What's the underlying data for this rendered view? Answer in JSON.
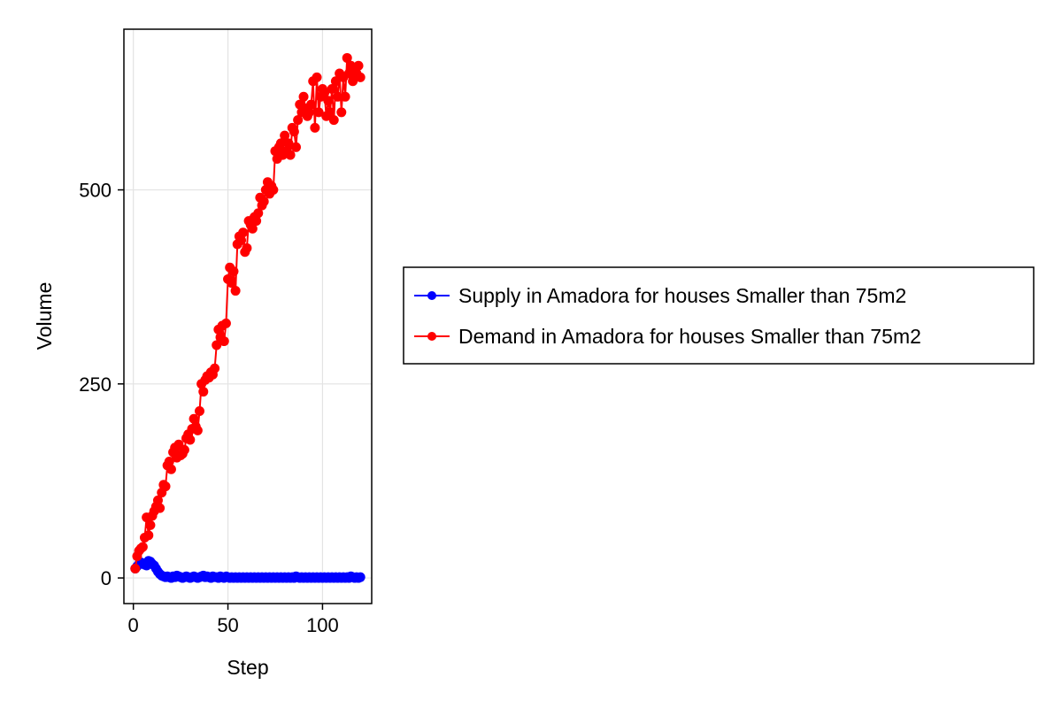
{
  "chart_data": {
    "type": "line",
    "title": "",
    "xlabel": "Step",
    "ylabel": "Volume",
    "xlim": [
      -5,
      126
    ],
    "ylim": [
      -33,
      707
    ],
    "xticks": [
      0,
      50,
      100
    ],
    "yticks": [
      0,
      250,
      500
    ],
    "xtick_labels": [
      "0",
      "50",
      "100"
    ],
    "ytick_labels": [
      "0",
      "250",
      "500"
    ],
    "grid": true,
    "legend_position": "right",
    "series": [
      {
        "name": "Supply in Amadora for houses Smaller than 75m2",
        "color": "#0000ff",
        "marker": "circle",
        "x": [
          1,
          2,
          3,
          4,
          5,
          6,
          7,
          8,
          9,
          10,
          11,
          12,
          13,
          14,
          15,
          16,
          17,
          18,
          19,
          20,
          21,
          22,
          23,
          24,
          25,
          26,
          27,
          28,
          29,
          30,
          31,
          32,
          33,
          34,
          35,
          36,
          37,
          38,
          39,
          40,
          41,
          42,
          43,
          44,
          45,
          46,
          47,
          48,
          49,
          50,
          51,
          52,
          53,
          54,
          55,
          56,
          57,
          58,
          59,
          60,
          61,
          62,
          63,
          64,
          65,
          66,
          67,
          68,
          69,
          70,
          71,
          72,
          73,
          74,
          75,
          76,
          77,
          78,
          79,
          80,
          81,
          82,
          83,
          84,
          85,
          86,
          87,
          88,
          89,
          90,
          91,
          92,
          93,
          94,
          95,
          96,
          97,
          98,
          99,
          100,
          101,
          102,
          103,
          104,
          105,
          106,
          107,
          108,
          109,
          110,
          111,
          112,
          113,
          114,
          115,
          116,
          117,
          118,
          119,
          120
        ],
        "y": [
          12,
          15,
          18,
          20,
          19,
          17,
          16,
          22,
          21,
          18,
          16,
          12,
          8,
          5,
          3,
          2,
          1,
          2,
          1,
          0,
          2,
          1,
          3,
          2,
          1,
          0,
          1,
          2,
          1,
          0,
          1,
          2,
          1,
          0,
          1,
          2,
          3,
          1,
          2,
          1,
          0,
          2,
          1,
          1,
          0,
          2,
          1,
          0,
          2,
          1,
          0,
          1,
          0,
          1,
          0,
          1,
          0,
          1,
          0,
          1,
          0,
          1,
          0,
          1,
          0,
          1,
          0,
          1,
          0,
          1,
          0,
          1,
          0,
          1,
          0,
          1,
          0,
          1,
          0,
          1,
          0,
          1,
          0,
          1,
          0,
          2,
          1,
          0,
          1,
          0,
          1,
          0,
          1,
          0,
          1,
          0,
          1,
          0,
          1,
          0,
          1,
          0,
          1,
          0,
          1,
          0,
          1,
          0,
          1,
          0,
          1,
          0,
          1,
          0,
          2,
          1,
          0,
          1,
          0,
          1
        ]
      },
      {
        "name": "Demand in Amadora for houses Smaller than 75m2",
        "color": "#ff0000",
        "marker": "circle",
        "x": [
          1,
          2,
          3,
          4,
          5,
          6,
          7,
          8,
          9,
          10,
          11,
          12,
          13,
          14,
          15,
          16,
          17,
          18,
          19,
          20,
          21,
          22,
          23,
          24,
          25,
          26,
          27,
          28,
          29,
          30,
          31,
          32,
          33,
          34,
          35,
          36,
          37,
          38,
          39,
          40,
          41,
          42,
          43,
          44,
          45,
          46,
          47,
          48,
          49,
          50,
          51,
          52,
          53,
          54,
          55,
          56,
          57,
          58,
          59,
          60,
          61,
          62,
          63,
          64,
          65,
          66,
          67,
          68,
          69,
          70,
          71,
          72,
          73,
          74,
          75,
          76,
          77,
          78,
          79,
          80,
          81,
          82,
          83,
          84,
          85,
          86,
          87,
          88,
          89,
          90,
          91,
          92,
          93,
          94,
          95,
          96,
          97,
          98,
          99,
          100,
          101,
          102,
          103,
          104,
          105,
          106,
          107,
          108,
          109,
          110,
          111,
          112,
          113,
          114,
          115,
          116,
          117,
          118,
          119,
          120
        ],
        "y": [
          12,
          28,
          35,
          38,
          40,
          52,
          78,
          55,
          68,
          80,
          86,
          92,
          100,
          90,
          110,
          120,
          118,
          145,
          150,
          140,
          162,
          168,
          155,
          172,
          158,
          160,
          165,
          180,
          185,
          178,
          192,
          205,
          195,
          190,
          215,
          250,
          240,
          255,
          260,
          258,
          265,
          262,
          270,
          300,
          320,
          310,
          325,
          305,
          328,
          385,
          400,
          380,
          395,
          370,
          430,
          440,
          435,
          445,
          420,
          425,
          460,
          455,
          450,
          465,
          460,
          470,
          490,
          480,
          485,
          500,
          510,
          495,
          505,
          500,
          550,
          540,
          555,
          560,
          545,
          570,
          550,
          560,
          545,
          580,
          575,
          555,
          590,
          610,
          600,
          620,
          605,
          595,
          600,
          610,
          640,
          580,
          645,
          600,
          620,
          630,
          625,
          595,
          615,
          600,
          630,
          590,
          640,
          620,
          650,
          600,
          645,
          620,
          670,
          650,
          660,
          640,
          655,
          650,
          660,
          645
        ]
      }
    ]
  }
}
